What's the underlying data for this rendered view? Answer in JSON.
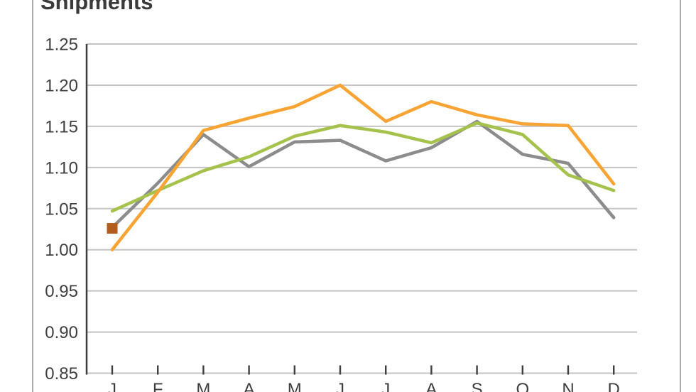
{
  "chart_data": {
    "type": "line",
    "title": "Shipments",
    "categories": [
      "J",
      "F",
      "M",
      "A",
      "M",
      "J",
      "J",
      "A",
      "S",
      "O",
      "N",
      "D"
    ],
    "ylim": [
      0.85,
      1.25
    ],
    "ytick_step": 0.05,
    "y_tick_labels": [
      "1.25",
      "1.20",
      "1.15",
      "1.10",
      "1.05",
      "1.00",
      "0.95",
      "0.90",
      "0.85"
    ],
    "grid": true,
    "legend": "none",
    "series": [
      {
        "name": "gray",
        "color": "#8c8c8c",
        "values": [
          1.027,
          1.081,
          1.14,
          1.101,
          1.131,
          1.133,
          1.108,
          1.124,
          1.156,
          1.116,
          1.105,
          1.039
        ]
      },
      {
        "name": "green",
        "color": "#a5c24d",
        "values": [
          1.047,
          1.072,
          1.096,
          1.113,
          1.138,
          1.151,
          1.143,
          1.13,
          1.154,
          1.14,
          1.091,
          1.072
        ]
      },
      {
        "name": "orange",
        "color": "#f8a434",
        "values": [
          1.0,
          1.07,
          1.145,
          1.16,
          1.174,
          1.2,
          1.156,
          1.18,
          1.164,
          1.153,
          1.151,
          1.08
        ]
      }
    ],
    "point_series": {
      "name": "brown-square",
      "color": "#b25c1e",
      "category_index": 0,
      "value": 1.026
    }
  },
  "style_colors": {
    "axis_line": "#3f3f3f",
    "gridline": "#c4c4c4",
    "tick_label": "#3f3f3f",
    "title": "#3a3a3a",
    "frame_border": "#ababab"
  }
}
